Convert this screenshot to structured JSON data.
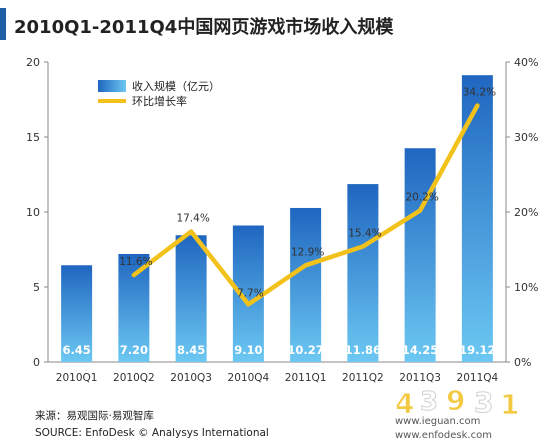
{
  "chart_data": {
    "type": "bar",
    "title": "2010Q1-2011Q4中国网页游戏市场收入规模",
    "categories": [
      "2010Q1",
      "2010Q2",
      "2010Q3",
      "2010Q4",
      "2011Q1",
      "2011Q2",
      "2011Q3",
      "2011Q4"
    ],
    "series": [
      {
        "name": "收入规模（亿元）",
        "type": "bar",
        "axis": "left",
        "values": [
          6.45,
          7.2,
          8.45,
          9.1,
          10.27,
          11.86,
          14.25,
          19.12
        ],
        "labels": [
          "6.45",
          "7.20",
          "8.45",
          "9.10",
          "10.27",
          "11.86",
          "14.25",
          "19.12"
        ]
      },
      {
        "name": "环比增长率",
        "type": "line",
        "axis": "right",
        "values": [
          null,
          11.6,
          17.4,
          7.7,
          12.9,
          15.4,
          20.2,
          34.2
        ],
        "labels": [
          "",
          "11.6%",
          "17.4%",
          "7.7%",
          "12.9%",
          "15.4%",
          "20.2%",
          "34.2%"
        ]
      }
    ],
    "ylim": [
      0,
      20
    ],
    "yticks": [
      "0",
      "5",
      "10",
      "15",
      "20"
    ],
    "ylim_right": [
      0,
      40
    ],
    "yticks_right": [
      "0%",
      "10%",
      "20%",
      "30%",
      "40%"
    ],
    "legend": "top-left",
    "grid": false,
    "colors": {
      "bar": "#2f7fd0",
      "bar_light": "#6cc3ef",
      "line": "#f2c21b",
      "title_bar": "#1f5fa8"
    }
  },
  "footer": {
    "source_cn": "来源：易观国际·易观智库",
    "source_en": "SOURCE: EnfoDesk © Analysys International"
  },
  "watermarks": {
    "site1": "www.ieguan.com",
    "site2": "www.enfodesk.com"
  }
}
